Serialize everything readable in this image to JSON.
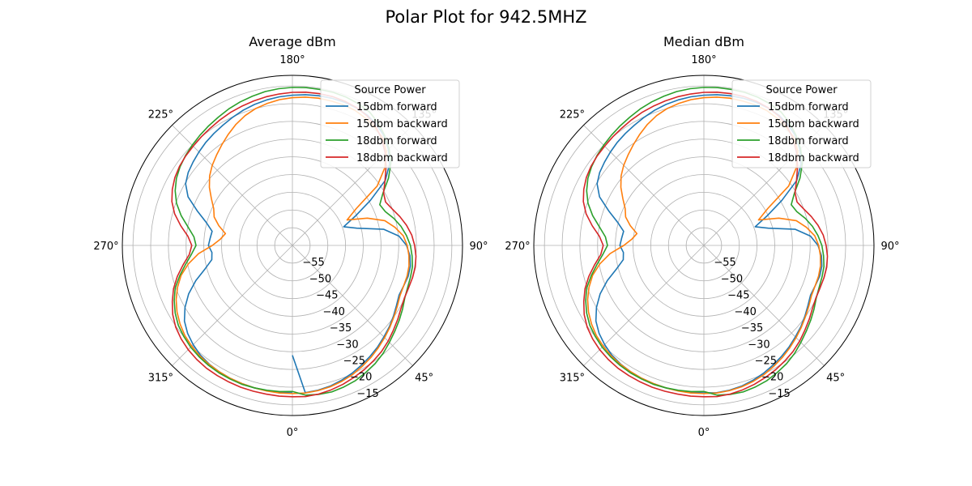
{
  "figure": {
    "title": "Polar Plot for 942.5MHZ"
  },
  "chart_data": [
    {
      "type": "line",
      "projection": "polar",
      "title": "Average dBm",
      "theta_zero_location": "bottom",
      "theta_direction": "counterclockwise",
      "theta_ticks": [
        0,
        45,
        90,
        135,
        180,
        225,
        270,
        315
      ],
      "theta_tick_labels": [
        "0°",
        "45°",
        "90°",
        "135°",
        "180°",
        "225°",
        "270°",
        "315°"
      ],
      "r_lim": [
        -60,
        -12
      ],
      "r_ticks": [
        -55,
        -50,
        -45,
        -40,
        -35,
        -30,
        -25,
        -20,
        -15
      ],
      "r_tick_labels": [
        "−55",
        "−50",
        "−45",
        "−40",
        "−35",
        "−30",
        "−25",
        "−20",
        "−15"
      ],
      "grid": true,
      "legend": {
        "title": "Source Power",
        "placement": "upper-right"
      },
      "theta_deg": [
        0,
        5,
        10,
        15,
        20,
        25,
        30,
        35,
        40,
        45,
        50,
        55,
        60,
        65,
        70,
        75,
        80,
        85,
        90,
        95,
        100,
        105,
        110,
        115,
        120,
        125,
        130,
        135,
        140,
        145,
        150,
        155,
        160,
        165,
        170,
        175,
        180,
        185,
        190,
        195,
        200,
        205,
        210,
        215,
        220,
        225,
        230,
        235,
        240,
        245,
        250,
        255,
        260,
        265,
        270,
        275,
        280,
        285,
        290,
        295,
        300,
        305,
        310,
        315,
        320,
        325,
        330,
        335,
        340,
        345,
        350,
        355,
        360
      ],
      "series": [
        {
          "name": "15dbm forward",
          "color": "#1f77b4",
          "values": [
            -29.0,
            -18.3,
            -18.5,
            -18.9,
            -19.5,
            -20.2,
            -21.0,
            -21.8,
            -22.6,
            -23.5,
            -24.3,
            -25.2,
            -26.1,
            -26.8,
            -26.6,
            -26.2,
            -26.2,
            -26.7,
            -27.8,
            -29.8,
            -33.8,
            -41.2,
            -44.6,
            -40.4,
            -34.6,
            -28.0,
            -24.2,
            -21.7,
            -19.7,
            -18.5,
            -17.6,
            -17.2,
            -17.0,
            -17.0,
            -17.1,
            -17.3,
            -17.6,
            -17.9,
            -18.3,
            -18.8,
            -19.4,
            -20.1,
            -20.8,
            -21.4,
            -22.0,
            -22.7,
            -23.4,
            -24.1,
            -25.2,
            -27.5,
            -31.4,
            -34.8,
            -37.0,
            -36.7,
            -36.3,
            -37.2,
            -36.9,
            -34.5,
            -31.0,
            -27.7,
            -25.0,
            -22.8,
            -21.4,
            -20.4,
            -19.6,
            -19.1,
            -18.8,
            -18.6,
            -18.5,
            -18.4,
            -18.4,
            -18.4,
            -18.4
          ]
        },
        {
          "name": "15dbm backward",
          "color": "#ff7f0e",
          "values": [
            -18.2,
            -18.2,
            -18.4,
            -18.7,
            -19.2,
            -19.8,
            -20.6,
            -21.4,
            -22.3,
            -23.2,
            -24.1,
            -25.0,
            -25.8,
            -26.5,
            -26.6,
            -26.5,
            -26.6,
            -27.0,
            -27.6,
            -28.6,
            -30.6,
            -33.0,
            -37.5,
            -43.0,
            -39.2,
            -30.8,
            -26.0,
            -22.5,
            -20.4,
            -19.4,
            -18.6,
            -18.0,
            -17.8,
            -17.8,
            -17.8,
            -18.0,
            -18.3,
            -18.7,
            -19.3,
            -20.0,
            -21.0,
            -22.3,
            -23.8,
            -25.3,
            -26.7,
            -28.0,
            -29.5,
            -31.4,
            -33.6,
            -35.5,
            -36.5,
            -38.5,
            -40.8,
            -39.6,
            -37.4,
            -33.4,
            -30.2,
            -27.5,
            -25.5,
            -23.8,
            -22.4,
            -21.3,
            -20.4,
            -19.8,
            -19.3,
            -19.0,
            -18.8,
            -18.6,
            -18.5,
            -18.4,
            -18.3,
            -18.2,
            -18.2
          ]
        },
        {
          "name": "18dbm forward",
          "color": "#2ca02c",
          "values": [
            -18.8,
            -17.6,
            -17.3,
            -17.2,
            -17.5,
            -17.9,
            -18.6,
            -19.3,
            -20.2,
            -21.3,
            -22.3,
            -23.2,
            -24.1,
            -25.0,
            -25.4,
            -25.5,
            -25.6,
            -26.1,
            -26.7,
            -27.7,
            -28.9,
            -30.4,
            -32.1,
            -32.8,
            -30.5,
            -26.9,
            -23.7,
            -21.4,
            -19.5,
            -17.8,
            -16.5,
            -15.9,
            -15.5,
            -15.3,
            -15.3,
            -15.3,
            -15.4,
            -15.6,
            -15.9,
            -16.4,
            -16.9,
            -17.5,
            -18.2,
            -18.8,
            -19.4,
            -20.0,
            -20.6,
            -21.3,
            -22.2,
            -23.5,
            -25.2,
            -27.5,
            -30.1,
            -32.1,
            -32.8,
            -31.4,
            -29.4,
            -27.1,
            -24.8,
            -23.2,
            -21.8,
            -20.7,
            -20.0,
            -19.4,
            -19.0,
            -18.7,
            -18.5,
            -18.4,
            -18.3,
            -18.4,
            -18.5,
            -18.6,
            -18.8
          ]
        },
        {
          "name": "18dbm backward",
          "color": "#d62728",
          "values": [
            -17.3,
            -17.2,
            -17.4,
            -17.8,
            -18.3,
            -18.9,
            -19.5,
            -20.2,
            -20.9,
            -21.8,
            -22.8,
            -23.7,
            -24.6,
            -25.1,
            -25.1,
            -24.9,
            -24.8,
            -25.0,
            -25.5,
            -26.2,
            -27.3,
            -28.6,
            -30.0,
            -31.0,
            -30.3,
            -28.1,
            -25.5,
            -23.0,
            -20.8,
            -19.0,
            -17.8,
            -17.1,
            -16.7,
            -16.5,
            -16.5,
            -16.6,
            -16.8,
            -17.1,
            -17.4,
            -17.8,
            -18.2,
            -18.6,
            -19.1,
            -19.6,
            -20.0,
            -20.4,
            -20.7,
            -21.1,
            -21.7,
            -22.6,
            -23.8,
            -25.6,
            -28.0,
            -30.4,
            -31.6,
            -30.8,
            -28.7,
            -26.4,
            -24.3,
            -22.6,
            -21.0,
            -19.8,
            -19.0,
            -18.4,
            -18.0,
            -17.7,
            -17.6,
            -17.5,
            -17.4,
            -17.4,
            -17.4,
            -17.3,
            -17.3
          ]
        }
      ]
    },
    {
      "type": "line",
      "projection": "polar",
      "title": "Median dBm",
      "theta_zero_location": "bottom",
      "theta_direction": "counterclockwise",
      "theta_ticks": [
        0,
        45,
        90,
        135,
        180,
        225,
        270,
        315
      ],
      "theta_tick_labels": [
        "0°",
        "45°",
        "90°",
        "135°",
        "180°",
        "225°",
        "270°",
        "315°"
      ],
      "r_lim": [
        -60,
        -12
      ],
      "r_ticks": [
        -55,
        -50,
        -45,
        -40,
        -35,
        -30,
        -25,
        -20,
        -15
      ],
      "r_tick_labels": [
        "−55",
        "−50",
        "−45",
        "−40",
        "−35",
        "−30",
        "−25",
        "−20",
        "−15"
      ],
      "grid": true,
      "legend": {
        "title": "Source Power",
        "placement": "upper-right"
      },
      "theta_deg": [
        0,
        5,
        10,
        15,
        20,
        25,
        30,
        35,
        40,
        45,
        50,
        55,
        60,
        65,
        70,
        75,
        80,
        85,
        90,
        95,
        100,
        105,
        110,
        115,
        120,
        125,
        130,
        135,
        140,
        145,
        150,
        155,
        160,
        165,
        170,
        175,
        180,
        185,
        190,
        195,
        200,
        205,
        210,
        215,
        220,
        225,
        230,
        235,
        240,
        245,
        250,
        255,
        260,
        265,
        270,
        275,
        280,
        285,
        290,
        295,
        300,
        305,
        310,
        315,
        320,
        325,
        330,
        335,
        340,
        345,
        350,
        355,
        360
      ],
      "series": [
        {
          "name": "15dbm forward",
          "color": "#1f77b4",
          "values": [
            -18.4,
            -18.3,
            -18.5,
            -18.9,
            -19.5,
            -20.2,
            -21.0,
            -21.8,
            -22.6,
            -23.5,
            -24.3,
            -25.2,
            -26.1,
            -26.8,
            -26.6,
            -26.2,
            -26.2,
            -26.7,
            -27.8,
            -29.8,
            -33.8,
            -41.2,
            -44.6,
            -40.4,
            -34.6,
            -28.0,
            -24.2,
            -21.7,
            -19.7,
            -18.5,
            -17.6,
            -17.2,
            -17.0,
            -17.0,
            -17.1,
            -17.3,
            -17.6,
            -17.9,
            -18.3,
            -18.8,
            -19.4,
            -20.1,
            -20.8,
            -21.4,
            -22.0,
            -22.7,
            -23.4,
            -24.1,
            -25.2,
            -27.5,
            -31.4,
            -34.8,
            -37.0,
            -36.7,
            -36.3,
            -37.2,
            -36.9,
            -34.5,
            -31.0,
            -27.7,
            -25.0,
            -22.8,
            -21.4,
            -20.4,
            -19.6,
            -19.1,
            -18.8,
            -18.6,
            -18.5,
            -18.4,
            -18.4,
            -18.4,
            -18.4
          ]
        },
        {
          "name": "15dbm backward",
          "color": "#ff7f0e",
          "values": [
            -18.2,
            -18.2,
            -18.4,
            -18.7,
            -19.2,
            -19.8,
            -20.6,
            -21.4,
            -22.3,
            -23.2,
            -24.1,
            -25.0,
            -25.8,
            -26.5,
            -26.6,
            -26.5,
            -26.6,
            -27.0,
            -27.6,
            -28.6,
            -30.6,
            -33.0,
            -37.5,
            -43.0,
            -39.2,
            -30.8,
            -26.0,
            -22.5,
            -20.4,
            -19.4,
            -18.6,
            -18.0,
            -17.8,
            -17.8,
            -17.8,
            -18.0,
            -18.3,
            -18.7,
            -19.3,
            -20.0,
            -21.0,
            -22.3,
            -23.8,
            -25.3,
            -26.7,
            -28.0,
            -29.5,
            -31.4,
            -33.6,
            -35.5,
            -36.5,
            -38.5,
            -40.8,
            -39.6,
            -37.4,
            -33.4,
            -30.2,
            -27.5,
            -25.5,
            -23.8,
            -22.4,
            -21.3,
            -20.4,
            -19.8,
            -19.3,
            -19.0,
            -18.8,
            -18.6,
            -18.5,
            -18.4,
            -18.3,
            -18.2,
            -18.2
          ]
        },
        {
          "name": "18dbm forward",
          "color": "#2ca02c",
          "values": [
            -18.8,
            -17.6,
            -17.3,
            -17.2,
            -17.5,
            -17.9,
            -18.6,
            -19.3,
            -20.2,
            -21.3,
            -22.3,
            -23.2,
            -24.1,
            -25.0,
            -25.4,
            -25.5,
            -25.6,
            -26.1,
            -26.7,
            -27.7,
            -28.9,
            -30.4,
            -32.1,
            -32.8,
            -30.5,
            -26.9,
            -23.7,
            -21.4,
            -19.5,
            -17.8,
            -16.5,
            -15.9,
            -15.5,
            -15.3,
            -15.3,
            -15.3,
            -15.4,
            -15.6,
            -15.9,
            -16.4,
            -16.9,
            -17.5,
            -18.2,
            -18.8,
            -19.4,
            -20.0,
            -20.6,
            -21.3,
            -22.2,
            -23.5,
            -25.2,
            -27.5,
            -30.1,
            -32.1,
            -32.8,
            -31.4,
            -29.4,
            -27.1,
            -24.8,
            -23.2,
            -21.8,
            -20.7,
            -20.0,
            -19.4,
            -19.0,
            -18.7,
            -18.5,
            -18.4,
            -18.3,
            -18.4,
            -18.5,
            -18.6,
            -18.8
          ]
        },
        {
          "name": "18dbm backward",
          "color": "#d62728",
          "values": [
            -17.3,
            -17.2,
            -17.4,
            -17.8,
            -18.3,
            -18.9,
            -19.5,
            -20.2,
            -20.9,
            -21.8,
            -22.8,
            -23.7,
            -24.6,
            -25.1,
            -25.1,
            -24.9,
            -24.8,
            -25.0,
            -25.5,
            -26.2,
            -27.3,
            -28.6,
            -30.0,
            -31.0,
            -30.3,
            -28.1,
            -25.5,
            -23.0,
            -20.8,
            -19.0,
            -17.8,
            -17.1,
            -16.7,
            -16.5,
            -16.5,
            -16.6,
            -16.8,
            -17.1,
            -17.4,
            -17.8,
            -18.2,
            -18.6,
            -19.1,
            -19.6,
            -20.0,
            -20.4,
            -20.7,
            -21.1,
            -21.7,
            -22.6,
            -23.8,
            -25.6,
            -28.0,
            -30.4,
            -31.6,
            -30.8,
            -28.7,
            -26.4,
            -24.3,
            -22.6,
            -21.0,
            -19.8,
            -19.0,
            -18.4,
            -18.0,
            -17.7,
            -17.6,
            -17.5,
            -17.4,
            -17.4,
            -17.4,
            -17.3,
            -17.3
          ]
        }
      ]
    }
  ]
}
